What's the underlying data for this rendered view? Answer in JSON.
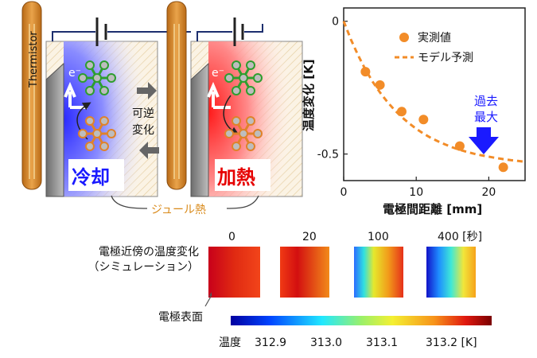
{
  "schematic": {
    "thermistor_label": "Thermistor",
    "electron_label": "e⁻",
    "reversible_label_line1": "可逆",
    "reversible_label_line2": "変化",
    "cooling_label": "冷却",
    "heating_label": "加熱",
    "joule_heat_label": "ジュール熱",
    "colors": {
      "cooling": "#1a1aff",
      "heating": "#e60000",
      "joule": "#d98a1a",
      "molecule_green": "#2e9e2e",
      "molecule_orange": "#e0822a"
    }
  },
  "chart_data": {
    "type": "scatter",
    "xlabel": "電極間距離 [mm]",
    "ylabel": "温度変化 [K]",
    "xlim": [
      0,
      25
    ],
    "ylim": [
      -0.6,
      0.05
    ],
    "x_ticks": [
      "0",
      "10",
      "20"
    ],
    "y_ticks": [
      "0",
      "-0.5"
    ],
    "legend": {
      "position": "top-right"
    },
    "series": [
      {
        "name": "実測値",
        "kind": "points",
        "color": "#f28c28",
        "x": [
          3,
          5,
          8,
          11,
          16,
          22
        ],
        "y": [
          -0.19,
          -0.24,
          -0.34,
          -0.37,
          -0.47,
          -0.55
        ]
      },
      {
        "name": "モデル予測",
        "kind": "dashed-line",
        "color": "#f28c28",
        "x": [
          0,
          1,
          2,
          3,
          4,
          5,
          6,
          7,
          8,
          9,
          10,
          11,
          12,
          13,
          14,
          15,
          16,
          17,
          18,
          19,
          20,
          21,
          22,
          23,
          24,
          25
        ],
        "y": [
          0,
          -0.069,
          -0.129,
          -0.182,
          -0.228,
          -0.268,
          -0.303,
          -0.334,
          -0.361,
          -0.384,
          -0.405,
          -0.423,
          -0.439,
          -0.452,
          -0.464,
          -0.475,
          -0.484,
          -0.492,
          -0.499,
          -0.505,
          -0.51,
          -0.515,
          -0.519,
          -0.523,
          -0.526,
          -0.529
        ]
      }
    ],
    "annotation": {
      "line1": "過去",
      "line2": "最大",
      "color": "#1a1aff",
      "x": 22
    }
  },
  "simulation": {
    "label_line1": "電極近傍の温度変化",
    "label_line2": "（シミュレーション）",
    "electrode_surface_label": "電極表面",
    "time_labels": [
      "0",
      "20",
      "100",
      "400 [秒]"
    ],
    "colorbar": {
      "title": "温度",
      "tick_labels": [
        "312.9",
        "313.0",
        "313.1",
        "313.2 [K]"
      ]
    }
  }
}
